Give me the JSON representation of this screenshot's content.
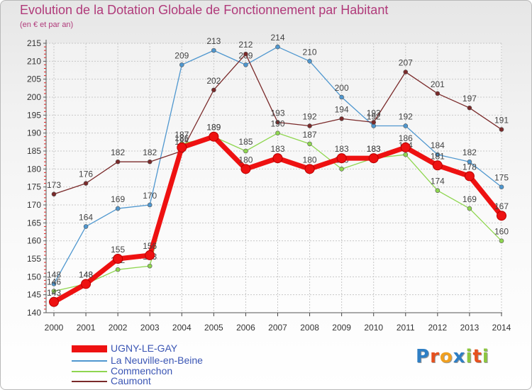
{
  "title": "Evolution de la Dotation Globale de Fonctionnement par Habitant",
  "subtitle": "(en € et par an)",
  "logo": "Proxiti",
  "chart_data": {
    "type": "line",
    "x": [
      2000,
      2001,
      2002,
      2003,
      2004,
      2005,
      2006,
      2007,
      2008,
      2009,
      2010,
      2011,
      2012,
      2013,
      2014
    ],
    "ylim": [
      140,
      215
    ],
    "yticks": [
      140,
      145,
      150,
      155,
      160,
      165,
      170,
      175,
      180,
      185,
      190,
      195,
      200,
      205,
      210,
      215
    ],
    "grid": true,
    "legend_position": "bottom-left",
    "series": [
      {
        "name": "La Neuville-en-Beine",
        "color": "#4f97cf",
        "values": [
          148,
          164,
          169,
          170,
          209,
          213,
          209,
          214,
          210,
          200,
          192,
          192,
          184,
          182,
          175
        ]
      },
      {
        "name": "Caumont",
        "color": "#7a2a2a",
        "values": [
          173,
          176,
          182,
          182,
          185,
          202,
          212,
          193,
          192,
          194,
          193,
          207,
          201,
          197,
          191
        ]
      },
      {
        "name": "Commenchon",
        "color": "#8fd650",
        "values": [
          146,
          148,
          152,
          153,
          187,
          189,
          185,
          190,
          187,
          180,
          183,
          184,
          174,
          169,
          160
        ]
      },
      {
        "name": "UGNY-LE-GAY",
        "color": "#ee1111",
        "values": [
          143,
          148,
          155,
          156,
          186,
          189,
          180,
          183,
          180,
          183,
          183,
          186,
          181,
          178,
          167
        ]
      }
    ],
    "legend_order": [
      "UGNY-LE-GAY",
      "La Neuville-en-Beine",
      "Commenchon",
      "Caumont"
    ]
  }
}
